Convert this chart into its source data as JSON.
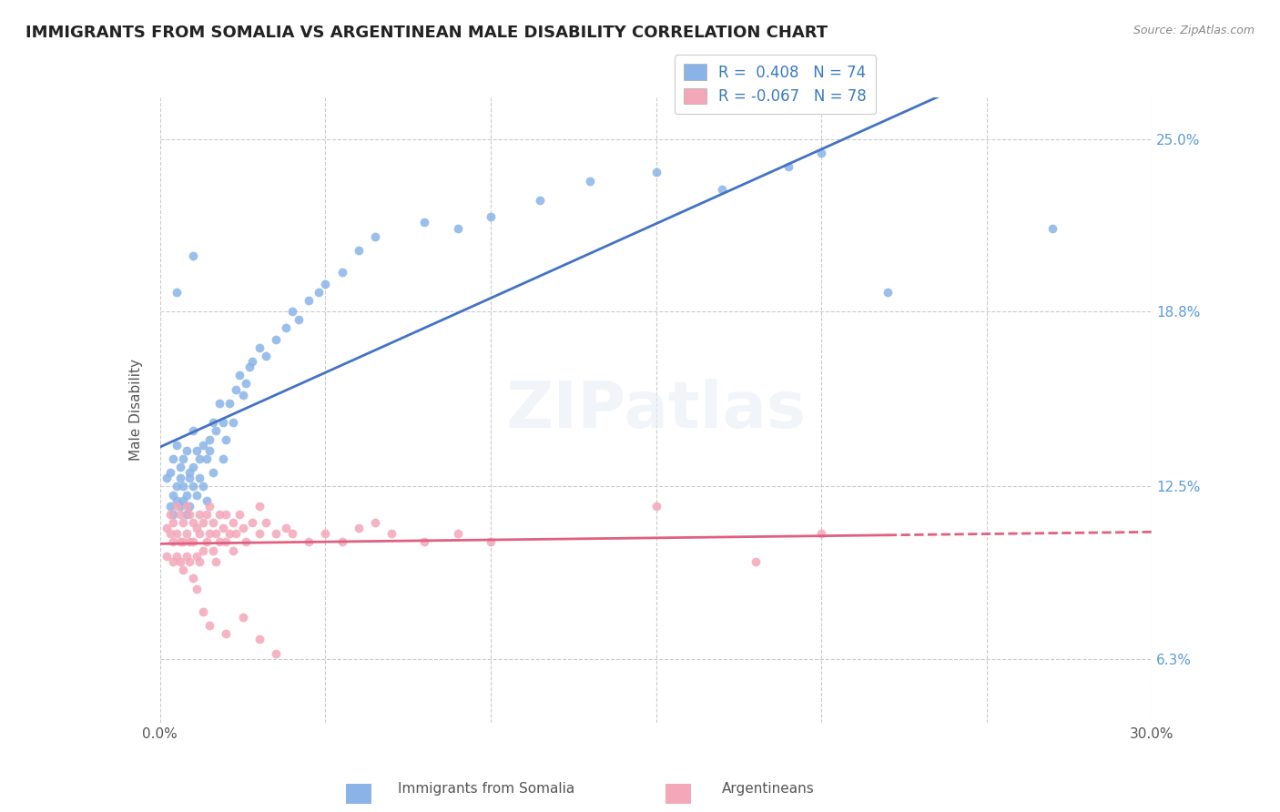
{
  "title": "IMMIGRANTS FROM SOMALIA VS ARGENTINEAN MALE DISABILITY CORRELATION CHART",
  "source": "Source: ZipAtlas.com",
  "xlabel": "",
  "ylabel": "Male Disability",
  "xlim": [
    0.0,
    0.3
  ],
  "ylim": [
    0.04,
    0.265
  ],
  "xtick_labels": [
    "0.0%",
    "",
    "",
    "",
    "",
    "",
    "30.0%"
  ],
  "xtick_values": [
    0.0,
    0.05,
    0.1,
    0.15,
    0.2,
    0.25,
    0.3
  ],
  "ytick_labels": [
    "6.3%",
    "12.5%",
    "18.8%",
    "25.0%"
  ],
  "ytick_values": [
    0.063,
    0.125,
    0.188,
    0.25
  ],
  "legend_somalia_R": "0.408",
  "legend_somalia_N": "74",
  "legend_arg_R": "-0.067",
  "legend_arg_N": "78",
  "somalia_color": "#8ab4e8",
  "arg_color": "#f4a7b9",
  "somalia_line_color": "#4472c4",
  "arg_line_color": "#e06080",
  "watermark": "ZIPatlas",
  "somalia_points": [
    [
      0.002,
      0.128
    ],
    [
      0.003,
      0.118
    ],
    [
      0.003,
      0.13
    ],
    [
      0.004,
      0.135
    ],
    [
      0.004,
      0.122
    ],
    [
      0.004,
      0.115
    ],
    [
      0.005,
      0.14
    ],
    [
      0.005,
      0.125
    ],
    [
      0.005,
      0.12
    ],
    [
      0.006,
      0.132
    ],
    [
      0.006,
      0.118
    ],
    [
      0.006,
      0.128
    ],
    [
      0.007,
      0.125
    ],
    [
      0.007,
      0.135
    ],
    [
      0.007,
      0.12
    ],
    [
      0.008,
      0.138
    ],
    [
      0.008,
      0.122
    ],
    [
      0.008,
      0.115
    ],
    [
      0.009,
      0.13
    ],
    [
      0.009,
      0.118
    ],
    [
      0.009,
      0.128
    ],
    [
      0.01,
      0.132
    ],
    [
      0.01,
      0.125
    ],
    [
      0.01,
      0.145
    ],
    [
      0.011,
      0.138
    ],
    [
      0.011,
      0.122
    ],
    [
      0.012,
      0.135
    ],
    [
      0.012,
      0.128
    ],
    [
      0.013,
      0.14
    ],
    [
      0.013,
      0.125
    ],
    [
      0.014,
      0.135
    ],
    [
      0.014,
      0.12
    ],
    [
      0.015,
      0.142
    ],
    [
      0.015,
      0.138
    ],
    [
      0.016,
      0.148
    ],
    [
      0.016,
      0.13
    ],
    [
      0.017,
      0.145
    ],
    [
      0.018,
      0.155
    ],
    [
      0.019,
      0.148
    ],
    [
      0.019,
      0.135
    ],
    [
      0.02,
      0.142
    ],
    [
      0.021,
      0.155
    ],
    [
      0.022,
      0.148
    ],
    [
      0.023,
      0.16
    ],
    [
      0.024,
      0.165
    ],
    [
      0.025,
      0.158
    ],
    [
      0.026,
      0.162
    ],
    [
      0.027,
      0.168
    ],
    [
      0.028,
      0.17
    ],
    [
      0.03,
      0.175
    ],
    [
      0.032,
      0.172
    ],
    [
      0.035,
      0.178
    ],
    [
      0.038,
      0.182
    ],
    [
      0.04,
      0.188
    ],
    [
      0.042,
      0.185
    ],
    [
      0.045,
      0.192
    ],
    [
      0.048,
      0.195
    ],
    [
      0.05,
      0.198
    ],
    [
      0.055,
      0.202
    ],
    [
      0.06,
      0.21
    ],
    [
      0.065,
      0.215
    ],
    [
      0.08,
      0.22
    ],
    [
      0.09,
      0.218
    ],
    [
      0.1,
      0.222
    ],
    [
      0.115,
      0.228
    ],
    [
      0.13,
      0.235
    ],
    [
      0.15,
      0.238
    ],
    [
      0.17,
      0.232
    ],
    [
      0.19,
      0.24
    ],
    [
      0.2,
      0.245
    ],
    [
      0.22,
      0.195
    ],
    [
      0.01,
      0.208
    ],
    [
      0.005,
      0.195
    ],
    [
      0.27,
      0.218
    ]
  ],
  "arg_points": [
    [
      0.002,
      0.11
    ],
    [
      0.002,
      0.1
    ],
    [
      0.003,
      0.115
    ],
    [
      0.003,
      0.108
    ],
    [
      0.004,
      0.112
    ],
    [
      0.004,
      0.105
    ],
    [
      0.004,
      0.098
    ],
    [
      0.005,
      0.118
    ],
    [
      0.005,
      0.108
    ],
    [
      0.005,
      0.1
    ],
    [
      0.006,
      0.115
    ],
    [
      0.006,
      0.105
    ],
    [
      0.006,
      0.098
    ],
    [
      0.007,
      0.112
    ],
    [
      0.007,
      0.105
    ],
    [
      0.007,
      0.095
    ],
    [
      0.008,
      0.118
    ],
    [
      0.008,
      0.108
    ],
    [
      0.008,
      0.1
    ],
    [
      0.009,
      0.115
    ],
    [
      0.009,
      0.105
    ],
    [
      0.009,
      0.098
    ],
    [
      0.01,
      0.112
    ],
    [
      0.01,
      0.105
    ],
    [
      0.01,
      0.092
    ],
    [
      0.011,
      0.11
    ],
    [
      0.011,
      0.1
    ],
    [
      0.011,
      0.088
    ],
    [
      0.012,
      0.115
    ],
    [
      0.012,
      0.108
    ],
    [
      0.012,
      0.098
    ],
    [
      0.013,
      0.112
    ],
    [
      0.013,
      0.102
    ],
    [
      0.013,
      0.08
    ],
    [
      0.014,
      0.115
    ],
    [
      0.014,
      0.105
    ],
    [
      0.015,
      0.118
    ],
    [
      0.015,
      0.108
    ],
    [
      0.016,
      0.112
    ],
    [
      0.016,
      0.102
    ],
    [
      0.017,
      0.108
    ],
    [
      0.017,
      0.098
    ],
    [
      0.018,
      0.115
    ],
    [
      0.018,
      0.105
    ],
    [
      0.019,
      0.11
    ],
    [
      0.02,
      0.115
    ],
    [
      0.02,
      0.105
    ],
    [
      0.021,
      0.108
    ],
    [
      0.022,
      0.112
    ],
    [
      0.022,
      0.102
    ],
    [
      0.023,
      0.108
    ],
    [
      0.024,
      0.115
    ],
    [
      0.025,
      0.11
    ],
    [
      0.026,
      0.105
    ],
    [
      0.028,
      0.112
    ],
    [
      0.03,
      0.108
    ],
    [
      0.032,
      0.112
    ],
    [
      0.035,
      0.108
    ],
    [
      0.038,
      0.11
    ],
    [
      0.04,
      0.108
    ],
    [
      0.045,
      0.105
    ],
    [
      0.05,
      0.108
    ],
    [
      0.055,
      0.105
    ],
    [
      0.06,
      0.11
    ],
    [
      0.065,
      0.112
    ],
    [
      0.07,
      0.108
    ],
    [
      0.08,
      0.105
    ],
    [
      0.09,
      0.108
    ],
    [
      0.1,
      0.105
    ],
    [
      0.15,
      0.118
    ],
    [
      0.18,
      0.098
    ],
    [
      0.2,
      0.108
    ],
    [
      0.015,
      0.075
    ],
    [
      0.02,
      0.072
    ],
    [
      0.025,
      0.078
    ],
    [
      0.03,
      0.07
    ],
    [
      0.035,
      0.065
    ],
    [
      0.03,
      0.118
    ]
  ]
}
